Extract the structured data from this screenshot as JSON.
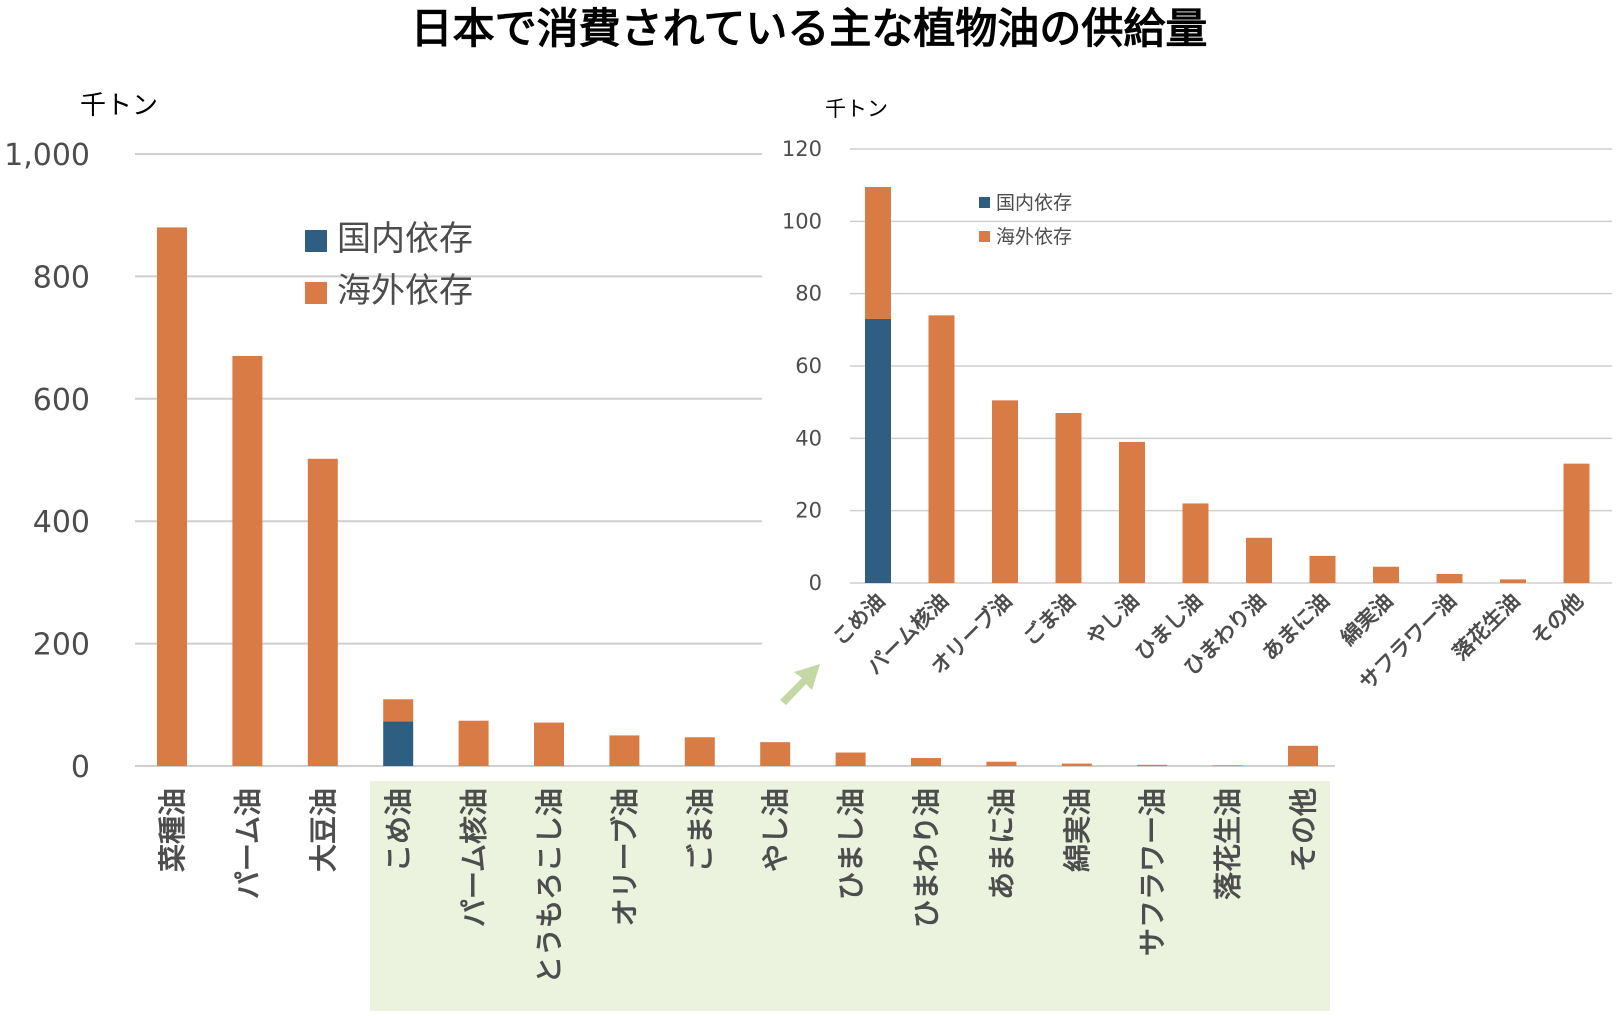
{
  "title": "日本で消費されている主な植物油の供給量",
  "colors": {
    "domestic": "#2e5f83",
    "overseas": "#d97b45",
    "grid": "#cfcfcf",
    "axis_text": "#4d4d4d",
    "highlight": "#ebf3de",
    "arrow": "#c5d8a4"
  },
  "chart_data": [
    {
      "type": "bar",
      "stacked": true,
      "unit": "千トン",
      "ylim": [
        0,
        1000
      ],
      "yticks": [
        "0",
        "200",
        "400",
        "600",
        "800",
        "1,000"
      ],
      "categories": [
        "菜種油",
        "パーム油",
        "大豆油",
        "こめ油",
        "パーム核油",
        "とうもろこし油",
        "オリーブ油",
        "ごま油",
        "やし油",
        "ひまし油",
        "ひまわり油",
        "あまに油",
        "綿実油",
        "サフラワー油",
        "落花生油",
        "その他"
      ],
      "series": [
        {
          "name": "国内依存",
          "values": [
            0,
            0,
            0,
            73,
            0,
            0,
            0,
            0,
            0,
            0,
            0,
            0,
            0,
            0,
            0,
            0
          ]
        },
        {
          "name": "海外依存",
          "values": [
            880,
            670,
            502,
            36,
            74,
            71,
            50,
            47,
            39,
            22,
            13,
            7,
            4,
            2,
            1,
            33
          ]
        }
      ],
      "legend": "top-center",
      "grid": true
    },
    {
      "type": "bar",
      "stacked": true,
      "unit": "千トン",
      "ylim": [
        0,
        120
      ],
      "yticks": [
        "0",
        "20",
        "40",
        "60",
        "80",
        "100",
        "120"
      ],
      "categories": [
        "こめ油",
        "パーム核油",
        "オリーブ油",
        "ごま油",
        "やし油",
        "ひまし油",
        "ひまわり油",
        "あまに油",
        "綿実油",
        "サフラワー油",
        "落花生油",
        "その他"
      ],
      "series": [
        {
          "name": "国内依存",
          "values": [
            73,
            0,
            0,
            0,
            0,
            0,
            0,
            0,
            0,
            0,
            0,
            0
          ]
        },
        {
          "name": "海外依存",
          "values": [
            36.5,
            74,
            50.5,
            47,
            39,
            22,
            12.5,
            7.5,
            4.5,
            2.5,
            1,
            33
          ]
        }
      ],
      "legend": "top-left",
      "grid": true
    }
  ]
}
